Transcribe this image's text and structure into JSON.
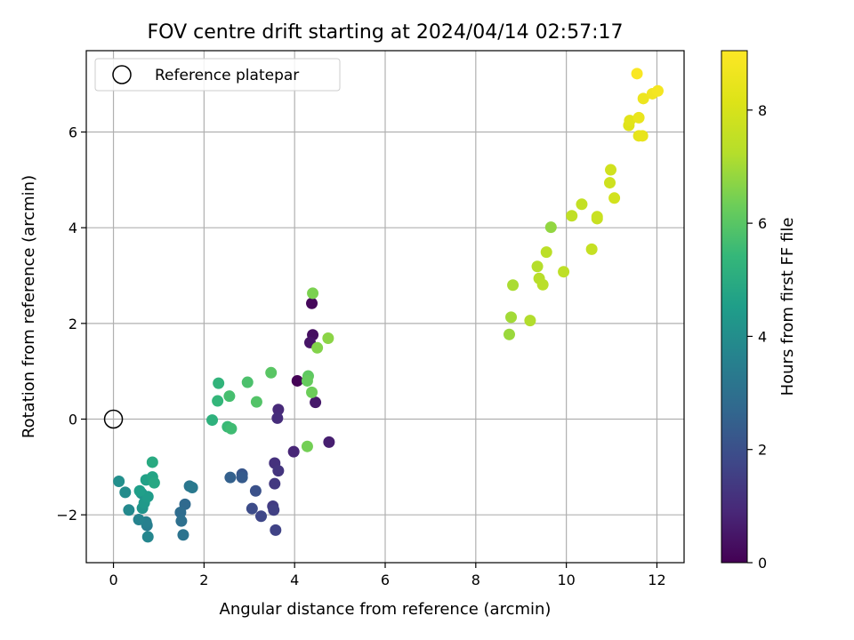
{
  "chart_data": {
    "type": "scatter",
    "title": "FOV centre drift starting at 2024/04/14 02:57:17",
    "xlabel": "Angular distance from reference (arcmin)",
    "ylabel": "Rotation from reference (arcmin)",
    "xlim": [
      -0.6,
      12.6
    ],
    "ylim": [
      -3.0,
      7.7
    ],
    "xticks": [
      0,
      2,
      4,
      6,
      8,
      10,
      12
    ],
    "yticks": [
      -2,
      0,
      2,
      4,
      6
    ],
    "grid": true,
    "legend": {
      "position": "top-left",
      "entries": [
        "Reference platepar"
      ]
    },
    "reference_point": {
      "x": 0,
      "y": 0,
      "label": "Reference platepar"
    },
    "colorbar": {
      "label": "Hours from first FF file",
      "range": [
        0,
        9.05
      ],
      "ticks": [
        0,
        2,
        4,
        6,
        8
      ],
      "colormap": "viridis"
    },
    "series": [
      {
        "points": [
          {
            "x": 4.06,
            "y": 0.8,
            "c": 0.05
          },
          {
            "x": 4.38,
            "y": 2.42,
            "c": 0.15
          },
          {
            "x": 4.4,
            "y": 1.76,
            "c": 0.3
          },
          {
            "x": 4.34,
            "y": 1.6,
            "c": 0.45
          },
          {
            "x": 4.46,
            "y": 0.35,
            "c": 0.55
          },
          {
            "x": 4.76,
            "y": -0.48,
            "c": 0.7
          },
          {
            "x": 3.98,
            "y": -0.68,
            "c": 0.85
          },
          {
            "x": 3.64,
            "y": 0.2,
            "c": 0.95
          },
          {
            "x": 3.62,
            "y": 0.02,
            "c": 1.05
          },
          {
            "x": 3.56,
            "y": -0.92,
            "c": 1.15
          },
          {
            "x": 3.64,
            "y": -1.08,
            "c": 1.25
          },
          {
            "x": 3.56,
            "y": -1.35,
            "c": 1.35
          },
          {
            "x": 3.52,
            "y": -1.82,
            "c": 1.45
          },
          {
            "x": 3.54,
            "y": -1.9,
            "c": 1.55
          },
          {
            "x": 3.58,
            "y": -2.32,
            "c": 1.65
          },
          {
            "x": 3.26,
            "y": -2.03,
            "c": 1.75
          },
          {
            "x": 3.06,
            "y": -1.87,
            "c": 1.9
          },
          {
            "x": 3.14,
            "y": -1.5,
            "c": 2.05
          },
          {
            "x": 2.84,
            "y": -1.15,
            "c": 2.2
          },
          {
            "x": 2.84,
            "y": -1.22,
            "c": 2.35
          },
          {
            "x": 2.58,
            "y": -1.22,
            "c": 2.5
          },
          {
            "x": 1.58,
            "y": -1.78,
            "c": 2.8
          },
          {
            "x": 1.48,
            "y": -1.95,
            "c": 2.9
          },
          {
            "x": 1.5,
            "y": -2.13,
            "c": 3.0
          },
          {
            "x": 1.54,
            "y": -2.42,
            "c": 3.1
          },
          {
            "x": 1.68,
            "y": -1.4,
            "c": 3.2
          },
          {
            "x": 1.74,
            "y": -1.43,
            "c": 3.3
          },
          {
            "x": 0.74,
            "y": -2.22,
            "c": 3.45
          },
          {
            "x": 0.72,
            "y": -2.15,
            "c": 3.55
          },
          {
            "x": 0.56,
            "y": -2.1,
            "c": 3.65
          },
          {
            "x": 0.76,
            "y": -2.46,
            "c": 3.75
          },
          {
            "x": 0.34,
            "y": -1.9,
            "c": 3.85
          },
          {
            "x": 0.26,
            "y": -1.53,
            "c": 3.95
          },
          {
            "x": 0.12,
            "y": -1.3,
            "c": 4.05
          },
          {
            "x": 0.62,
            "y": -1.55,
            "c": 4.15
          },
          {
            "x": 0.64,
            "y": -1.86,
            "c": 4.25
          },
          {
            "x": 0.68,
            "y": -1.75,
            "c": 4.35
          },
          {
            "x": 0.76,
            "y": -1.62,
            "c": 4.45
          },
          {
            "x": 0.58,
            "y": -1.5,
            "c": 4.55
          },
          {
            "x": 0.72,
            "y": -1.27,
            "c": 4.65
          },
          {
            "x": 0.86,
            "y": -1.21,
            "c": 4.75
          },
          {
            "x": 0.9,
            "y": -1.33,
            "c": 4.85
          },
          {
            "x": 0.86,
            "y": -0.9,
            "c": 4.95
          },
          {
            "x": 2.18,
            "y": -0.02,
            "c": 5.2
          },
          {
            "x": 2.32,
            "y": 0.75,
            "c": 5.3
          },
          {
            "x": 2.3,
            "y": 0.38,
            "c": 5.4
          },
          {
            "x": 2.52,
            "y": -0.16,
            "c": 5.5
          },
          {
            "x": 2.6,
            "y": -0.2,
            "c": 5.6
          },
          {
            "x": 2.56,
            "y": 0.48,
            "c": 5.7
          },
          {
            "x": 2.96,
            "y": 0.77,
            "c": 5.8
          },
          {
            "x": 3.16,
            "y": 0.36,
            "c": 5.9
          },
          {
            "x": 3.48,
            "y": 0.97,
            "c": 6.0
          },
          {
            "x": 4.3,
            "y": 0.9,
            "c": 6.1
          },
          {
            "x": 4.28,
            "y": 0.8,
            "c": 6.2
          },
          {
            "x": 4.38,
            "y": 0.56,
            "c": 6.3
          },
          {
            "x": 4.28,
            "y": -0.57,
            "c": 6.4
          },
          {
            "x": 4.4,
            "y": 2.63,
            "c": 6.5
          },
          {
            "x": 4.5,
            "y": 1.49,
            "c": 6.6
          },
          {
            "x": 4.74,
            "y": 1.69,
            "c": 6.7
          },
          {
            "x": 9.66,
            "y": 4.01,
            "c": 6.8
          },
          {
            "x": 8.74,
            "y": 1.77,
            "c": 6.9
          },
          {
            "x": 8.78,
            "y": 2.13,
            "c": 7.0
          },
          {
            "x": 8.82,
            "y": 2.8,
            "c": 7.1
          },
          {
            "x": 9.2,
            "y": 2.06,
            "c": 7.2
          },
          {
            "x": 9.36,
            "y": 3.19,
            "c": 7.25
          },
          {
            "x": 9.4,
            "y": 2.94,
            "c": 7.3
          },
          {
            "x": 9.48,
            "y": 2.81,
            "c": 7.35
          },
          {
            "x": 9.56,
            "y": 3.49,
            "c": 7.4
          },
          {
            "x": 9.94,
            "y": 3.08,
            "c": 7.45
          },
          {
            "x": 10.12,
            "y": 4.25,
            "c": 7.5
          },
          {
            "x": 10.34,
            "y": 4.49,
            "c": 7.55
          },
          {
            "x": 10.56,
            "y": 3.55,
            "c": 7.6
          },
          {
            "x": 10.68,
            "y": 4.19,
            "c": 7.65
          },
          {
            "x": 10.68,
            "y": 4.23,
            "c": 7.7
          },
          {
            "x": 10.96,
            "y": 4.94,
            "c": 7.8
          },
          {
            "x": 10.98,
            "y": 5.21,
            "c": 7.85
          },
          {
            "x": 11.06,
            "y": 4.62,
            "c": 7.9
          },
          {
            "x": 11.38,
            "y": 6.14,
            "c": 8.2
          },
          {
            "x": 11.4,
            "y": 6.24,
            "c": 8.3
          },
          {
            "x": 11.6,
            "y": 5.92,
            "c": 8.4
          },
          {
            "x": 11.68,
            "y": 5.92,
            "c": 8.45
          },
          {
            "x": 11.6,
            "y": 6.3,
            "c": 8.5
          },
          {
            "x": 11.7,
            "y": 6.7,
            "c": 8.6
          },
          {
            "x": 11.9,
            "y": 6.8,
            "c": 8.7
          },
          {
            "x": 12.02,
            "y": 6.86,
            "c": 8.8
          },
          {
            "x": 11.56,
            "y": 7.22,
            "c": 8.95
          }
        ]
      }
    ]
  }
}
